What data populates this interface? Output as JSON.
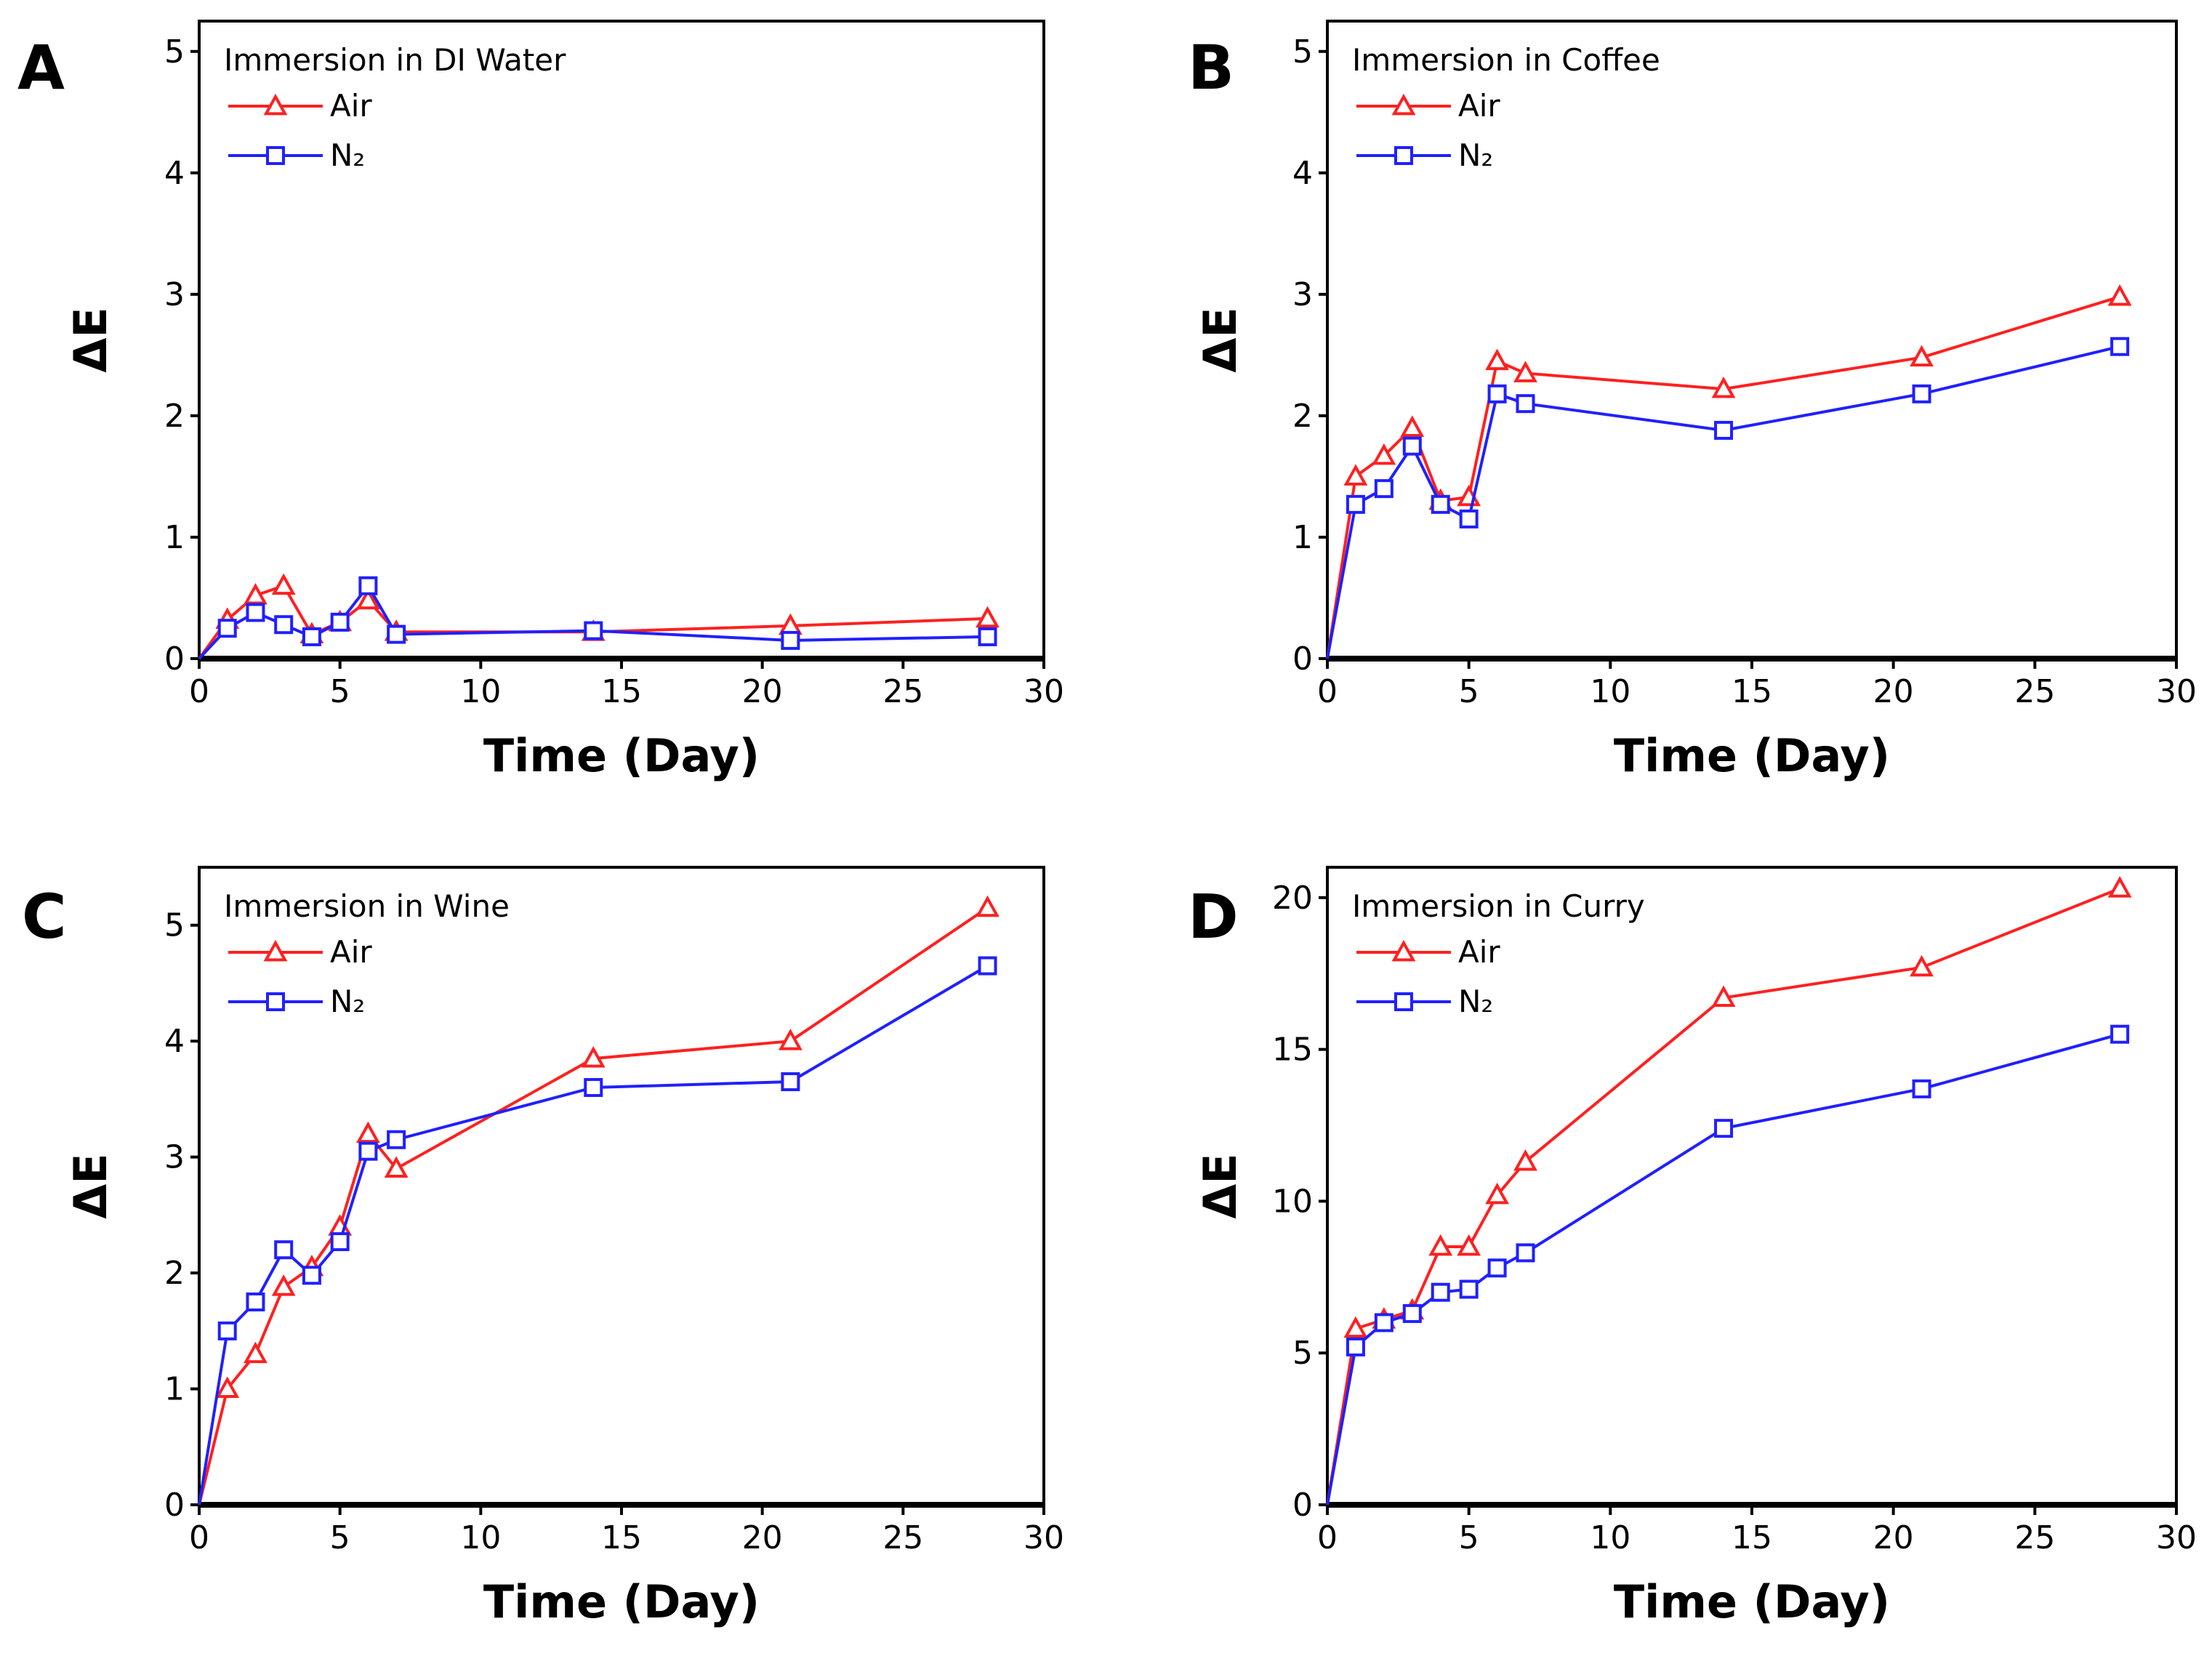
{
  "chart_data": [
    {
      "panel": "A",
      "type": "line",
      "title": "Immersion in DI Water",
      "xlabel": "Time (Day)",
      "ylabel": "ΔE",
      "xlim": [
        0,
        30
      ],
      "ylim": [
        0,
        5
      ],
      "xticks": [
        0,
        5,
        10,
        15,
        20,
        25,
        30
      ],
      "yticks": [
        0,
        1,
        2,
        3,
        4,
        5
      ],
      "x": [
        0,
        1,
        2,
        3,
        4,
        5,
        6,
        7,
        14,
        21,
        28
      ],
      "legend": "top-left",
      "grid": false,
      "series": [
        {
          "name": "Air",
          "marker": "triangle",
          "color": "#ff2020",
          "values": [
            0,
            0.32,
            0.52,
            0.6,
            0.2,
            0.3,
            0.48,
            0.22,
            0.22,
            0.27,
            0.33
          ]
        },
        {
          "name": "N₂",
          "marker": "square",
          "color": "#2020ff",
          "values": [
            0,
            0.25,
            0.38,
            0.28,
            0.18,
            0.3,
            0.6,
            0.2,
            0.23,
            0.15,
            0.18
          ]
        }
      ]
    },
    {
      "panel": "B",
      "type": "line",
      "title": "Immersion in Coffee",
      "xlabel": "Time (Day)",
      "ylabel": "ΔE",
      "xlim": [
        0,
        30
      ],
      "ylim": [
        0,
        5
      ],
      "xticks": [
        0,
        5,
        10,
        15,
        20,
        25,
        30
      ],
      "yticks": [
        0,
        1,
        2,
        3,
        4,
        5
      ],
      "x": [
        0,
        1,
        2,
        3,
        4,
        5,
        6,
        7,
        14,
        21,
        28
      ],
      "legend": "top-left",
      "grid": false,
      "series": [
        {
          "name": "Air",
          "marker": "triangle",
          "color": "#ff2020",
          "values": [
            0,
            1.5,
            1.67,
            1.9,
            1.3,
            1.33,
            2.45,
            2.35,
            2.22,
            2.48,
            2.98
          ]
        },
        {
          "name": "N₂",
          "marker": "square",
          "color": "#2020ff",
          "values": [
            0,
            1.27,
            1.4,
            1.75,
            1.27,
            1.15,
            2.18,
            2.1,
            1.88,
            2.18,
            2.57
          ]
        }
      ]
    },
    {
      "panel": "C",
      "type": "line",
      "title": "Immersion in Wine",
      "xlabel": "Time (Day)",
      "ylabel": "ΔE",
      "xlim": [
        0,
        30
      ],
      "ylim": [
        0,
        5
      ],
      "xticks": [
        0,
        5,
        10,
        15,
        20,
        25,
        30
      ],
      "yticks": [
        0,
        1,
        2,
        3,
        4,
        5
      ],
      "x": [
        0,
        1,
        2,
        3,
        4,
        5,
        6,
        7,
        14,
        21,
        28
      ],
      "legend": "top-left",
      "grid": false,
      "series": [
        {
          "name": "Air",
          "marker": "triangle",
          "color": "#ff2020",
          "values": [
            0,
            1.0,
            1.3,
            1.88,
            2.05,
            2.4,
            3.2,
            2.9,
            3.85,
            4.0,
            5.15
          ]
        },
        {
          "name": "N₂",
          "marker": "square",
          "color": "#2020ff",
          "values": [
            0,
            1.5,
            1.75,
            2.2,
            1.98,
            2.27,
            3.05,
            3.15,
            3.6,
            3.65,
            4.65
          ]
        }
      ]
    },
    {
      "panel": "D",
      "type": "line",
      "title": "Immersion in Curry",
      "xlabel": "Time (Day)",
      "ylabel": "ΔE",
      "xlim": [
        0,
        30
      ],
      "ylim": [
        0,
        20
      ],
      "xticks": [
        0,
        5,
        10,
        15,
        20,
        25,
        30
      ],
      "yticks": [
        0,
        5,
        10,
        15,
        20
      ],
      "x": [
        0,
        1,
        2,
        3,
        4,
        5,
        6,
        7,
        14,
        21,
        28
      ],
      "legend": "top-left",
      "grid": false,
      "series": [
        {
          "name": "Air",
          "marker": "triangle",
          "color": "#ff2020",
          "values": [
            0,
            5.8,
            6.1,
            6.4,
            8.5,
            8.5,
            10.2,
            11.3,
            16.7,
            17.7,
            20.3
          ]
        },
        {
          "name": "N₂",
          "marker": "square",
          "color": "#2020ff",
          "values": [
            0,
            5.2,
            6.0,
            6.3,
            7.0,
            7.1,
            7.8,
            8.3,
            12.4,
            13.7,
            15.5
          ]
        }
      ]
    }
  ]
}
